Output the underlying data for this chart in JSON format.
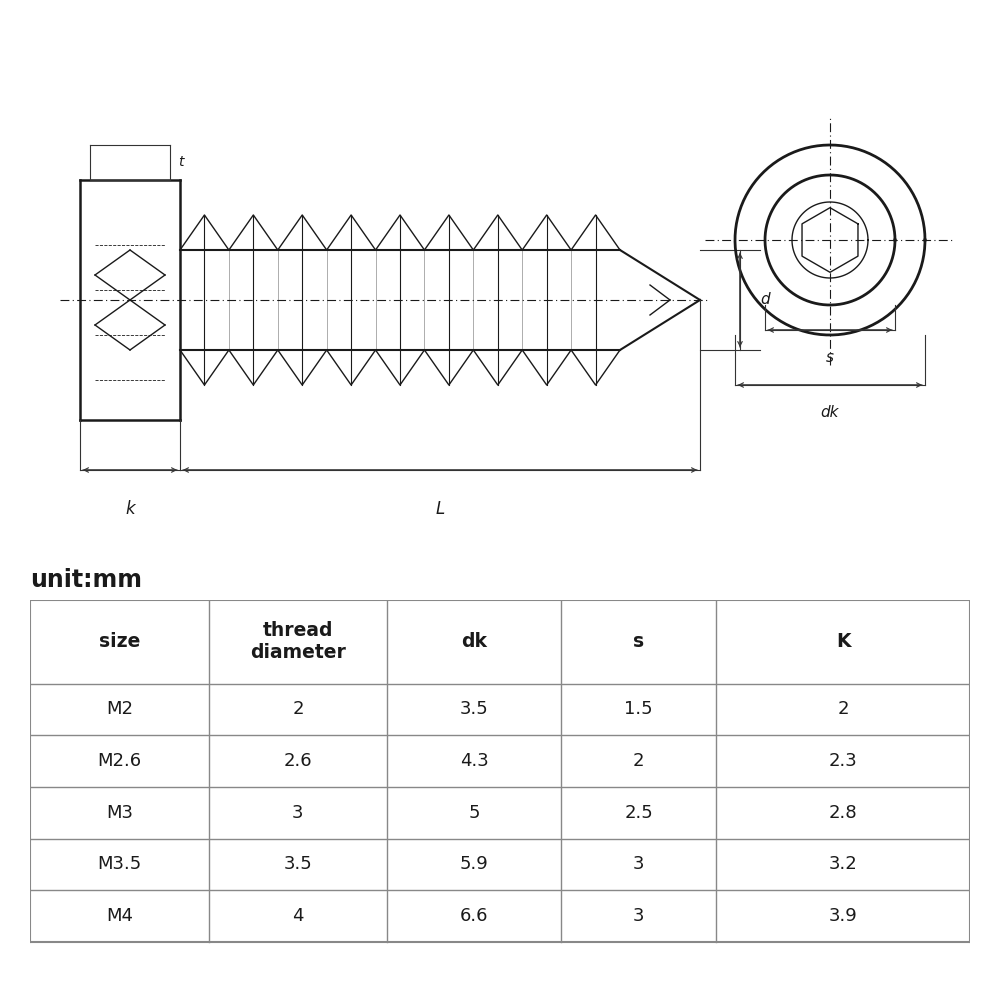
{
  "unit_label": "unit:mm",
  "table_headers": [
    "size",
    "thread\ndiameter",
    "dk",
    "s",
    "K"
  ],
  "table_rows": [
    [
      "M2",
      "2",
      "3.5",
      "1.5",
      "2"
    ],
    [
      "M2.6",
      "2.6",
      "4.3",
      "2",
      "2.3"
    ],
    [
      "M3",
      "3",
      "5",
      "2.5",
      "2.8"
    ],
    [
      "M3.5",
      "3.5",
      "5.9",
      "3",
      "3.2"
    ],
    [
      "M4",
      "4",
      "6.6",
      "3",
      "3.9"
    ]
  ],
  "bg_color": "#ffffff",
  "line_color": "#1a1a1a",
  "text_color": "#1a1a1a",
  "table_line_color": "#888888",
  "dim_color": "#333333"
}
